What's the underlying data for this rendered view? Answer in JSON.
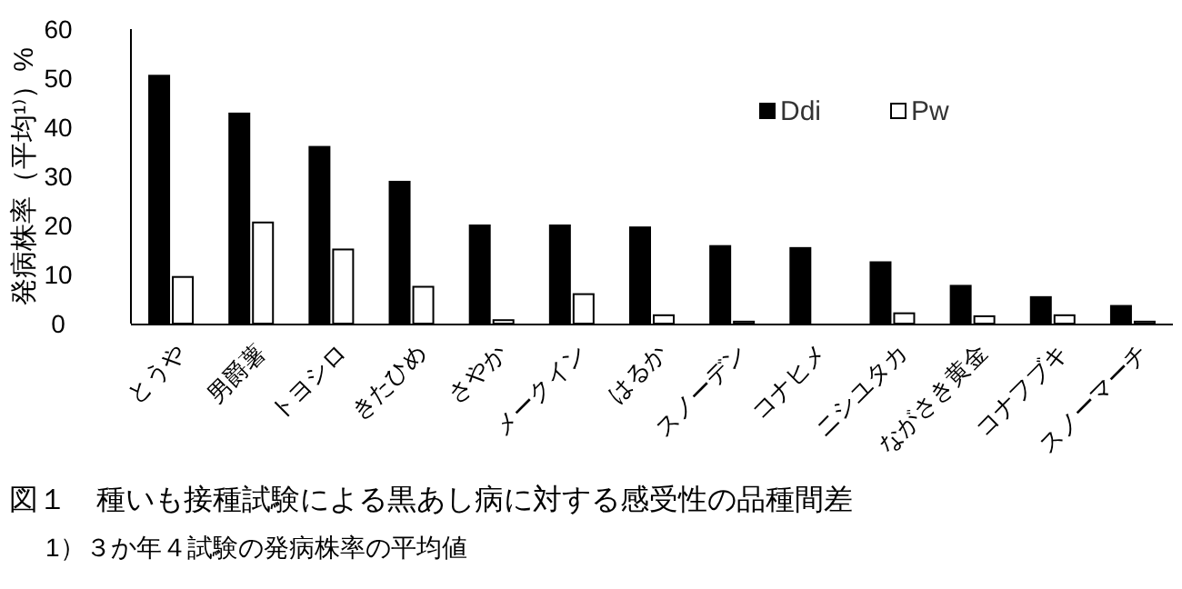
{
  "chart_data": {
    "type": "bar",
    "title": "図１　種いも接種試験による黒あし病に対する感受性の品種間差",
    "ylabel": "発病株率（平均¹⁾）%",
    "annotations": [
      "1）３か年４試験の発病株率の平均値"
    ],
    "categories": [
      "とうや",
      "男爵薯",
      "トヨシロ",
      "きたひめ",
      "さやか",
      "メークイン",
      "はるか",
      "スノーデン",
      "コナヒメ",
      "ニシユタカ",
      "ながさき黄金",
      "コナフブキ",
      "スノーマーチ"
    ],
    "series": [
      {
        "name": "Ddi",
        "color": "#000000",
        "values": [
          50.5,
          42.8,
          36.0,
          28.9,
          20.0,
          20.0,
          19.6,
          15.8,
          15.4,
          12.5,
          7.7,
          5.4,
          3.6
        ]
      },
      {
        "name": "Pw",
        "color": "#ffffff",
        "values": [
          9.5,
          20.6,
          15.1,
          7.5,
          0.7,
          6.0,
          1.7,
          0.4,
          0,
          2.1,
          1.5,
          1.7,
          0.4
        ]
      }
    ],
    "ylim": [
      0,
      60
    ],
    "yticks": [
      0,
      10,
      20,
      30,
      40,
      50,
      60
    ],
    "grid": false,
    "legend": "top right"
  }
}
